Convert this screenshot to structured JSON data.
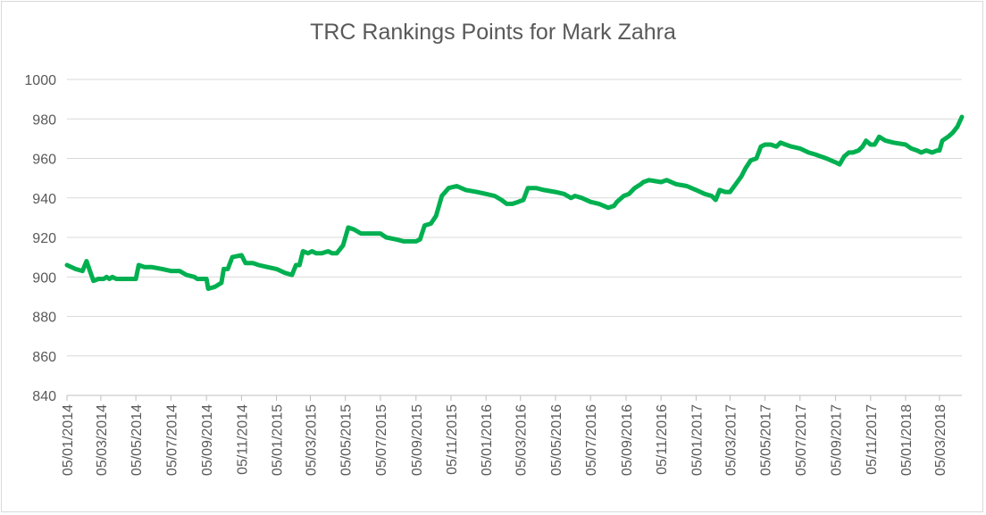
{
  "chart_data": {
    "type": "line",
    "title": "TRC Rankings Points for Mark Zahra",
    "xlabel": "",
    "ylabel": "",
    "ylim": [
      840,
      1000
    ],
    "yticks": [
      840,
      860,
      880,
      900,
      920,
      940,
      960,
      980,
      1000
    ],
    "xlim": [
      "2014-01-05",
      "2018-04-13"
    ],
    "xticks": [
      {
        "date": "2014-01-05",
        "label": "05/01/2014"
      },
      {
        "date": "2014-03-05",
        "label": "05/03/2014"
      },
      {
        "date": "2014-05-05",
        "label": "05/05/2014"
      },
      {
        "date": "2014-07-05",
        "label": "05/07/2014"
      },
      {
        "date": "2014-09-05",
        "label": "05/09/2014"
      },
      {
        "date": "2014-11-05",
        "label": "05/11/2014"
      },
      {
        "date": "2015-01-05",
        "label": "05/01/2015"
      },
      {
        "date": "2015-03-05",
        "label": "05/03/2015"
      },
      {
        "date": "2015-05-05",
        "label": "05/05/2015"
      },
      {
        "date": "2015-07-05",
        "label": "05/07/2015"
      },
      {
        "date": "2015-09-05",
        "label": "05/09/2015"
      },
      {
        "date": "2015-11-05",
        "label": "05/11/2015"
      },
      {
        "date": "2016-01-05",
        "label": "05/01/2016"
      },
      {
        "date": "2016-03-05",
        "label": "05/03/2016"
      },
      {
        "date": "2016-05-05",
        "label": "05/05/2016"
      },
      {
        "date": "2016-07-05",
        "label": "05/07/2016"
      },
      {
        "date": "2016-09-05",
        "label": "05/09/2016"
      },
      {
        "date": "2016-11-05",
        "label": "05/11/2016"
      },
      {
        "date": "2017-01-05",
        "label": "05/01/2017"
      },
      {
        "date": "2017-03-05",
        "label": "05/03/2017"
      },
      {
        "date": "2017-05-05",
        "label": "05/05/2017"
      },
      {
        "date": "2017-07-05",
        "label": "05/07/2017"
      },
      {
        "date": "2017-09-05",
        "label": "05/09/2017"
      },
      {
        "date": "2017-11-05",
        "label": "05/11/2017"
      },
      {
        "date": "2018-01-05",
        "label": "05/01/2018"
      },
      {
        "date": "2018-03-05",
        "label": "05/03/2018"
      }
    ],
    "grid": true,
    "line_color": "#00b050",
    "grid_color": "#d9d9d9",
    "series": [
      {
        "points": [
          [
            "2014-01-05",
            906
          ],
          [
            "2014-01-20",
            904
          ],
          [
            "2014-02-01",
            903
          ],
          [
            "2014-02-08",
            908
          ],
          [
            "2014-02-14",
            903
          ],
          [
            "2014-02-20",
            898
          ],
          [
            "2014-03-01",
            899
          ],
          [
            "2014-03-10",
            899
          ],
          [
            "2014-03-15",
            900
          ],
          [
            "2014-03-20",
            899
          ],
          [
            "2014-03-25",
            900
          ],
          [
            "2014-04-01",
            899
          ],
          [
            "2014-04-15",
            899
          ],
          [
            "2014-05-05",
            899
          ],
          [
            "2014-05-10",
            906
          ],
          [
            "2014-05-20",
            905
          ],
          [
            "2014-06-01",
            905
          ],
          [
            "2014-06-20",
            904
          ],
          [
            "2014-07-05",
            903
          ],
          [
            "2014-07-20",
            903
          ],
          [
            "2014-08-01",
            901
          ],
          [
            "2014-08-15",
            900
          ],
          [
            "2014-08-20",
            899
          ],
          [
            "2014-09-05",
            899
          ],
          [
            "2014-09-08",
            894
          ],
          [
            "2014-09-20",
            895
          ],
          [
            "2014-10-01",
            897
          ],
          [
            "2014-10-05",
            904
          ],
          [
            "2014-10-12",
            904
          ],
          [
            "2014-10-20",
            910
          ],
          [
            "2014-11-05",
            911
          ],
          [
            "2014-11-12",
            907
          ],
          [
            "2014-11-25",
            907
          ],
          [
            "2014-12-05",
            906
          ],
          [
            "2014-12-20",
            905
          ],
          [
            "2015-01-05",
            904
          ],
          [
            "2015-01-20",
            902
          ],
          [
            "2015-02-01",
            901
          ],
          [
            "2015-02-08",
            906
          ],
          [
            "2015-02-14",
            906
          ],
          [
            "2015-02-20",
            913
          ],
          [
            "2015-03-01",
            912
          ],
          [
            "2015-03-08",
            913
          ],
          [
            "2015-03-15",
            912
          ],
          [
            "2015-03-25",
            912
          ],
          [
            "2015-04-05",
            913
          ],
          [
            "2015-04-12",
            912
          ],
          [
            "2015-04-20",
            912
          ],
          [
            "2015-05-01",
            916
          ],
          [
            "2015-05-10",
            925
          ],
          [
            "2015-05-20",
            924
          ],
          [
            "2015-06-01",
            922
          ],
          [
            "2015-06-20",
            922
          ],
          [
            "2015-07-05",
            922
          ],
          [
            "2015-07-15",
            920
          ],
          [
            "2015-08-01",
            919
          ],
          [
            "2015-08-15",
            918
          ],
          [
            "2015-09-05",
            918
          ],
          [
            "2015-09-12",
            919
          ],
          [
            "2015-09-20",
            926
          ],
          [
            "2015-10-01",
            927
          ],
          [
            "2015-10-10",
            931
          ],
          [
            "2015-10-20",
            941
          ],
          [
            "2015-11-01",
            945
          ],
          [
            "2015-11-15",
            946
          ],
          [
            "2015-12-01",
            944
          ],
          [
            "2015-12-20",
            943
          ],
          [
            "2016-01-05",
            942
          ],
          [
            "2016-01-20",
            941
          ],
          [
            "2016-02-01",
            939
          ],
          [
            "2016-02-10",
            937
          ],
          [
            "2016-02-20",
            937
          ],
          [
            "2016-03-01",
            938
          ],
          [
            "2016-03-10",
            939
          ],
          [
            "2016-03-18",
            945
          ],
          [
            "2016-04-01",
            945
          ],
          [
            "2016-04-15",
            944
          ],
          [
            "2016-05-05",
            943
          ],
          [
            "2016-05-20",
            942
          ],
          [
            "2016-06-01",
            940
          ],
          [
            "2016-06-08",
            941
          ],
          [
            "2016-06-20",
            940
          ],
          [
            "2016-07-05",
            938
          ],
          [
            "2016-07-20",
            937
          ],
          [
            "2016-08-05",
            935
          ],
          [
            "2016-08-15",
            936
          ],
          [
            "2016-08-20",
            938
          ],
          [
            "2016-09-01",
            941
          ],
          [
            "2016-09-10",
            942
          ],
          [
            "2016-09-20",
            945
          ],
          [
            "2016-10-01",
            947
          ],
          [
            "2016-10-05",
            948
          ],
          [
            "2016-10-15",
            949
          ],
          [
            "2016-11-05",
            948
          ],
          [
            "2016-11-15",
            949
          ],
          [
            "2016-12-01",
            947
          ],
          [
            "2016-12-20",
            946
          ],
          [
            "2017-01-05",
            944
          ],
          [
            "2017-01-20",
            942
          ],
          [
            "2017-02-01",
            941
          ],
          [
            "2017-02-08",
            939
          ],
          [
            "2017-02-15",
            944
          ],
          [
            "2017-02-25",
            943
          ],
          [
            "2017-03-05",
            943
          ],
          [
            "2017-03-15",
            947
          ],
          [
            "2017-03-25",
            951
          ],
          [
            "2017-04-01",
            955
          ],
          [
            "2017-04-10",
            959
          ],
          [
            "2017-04-20",
            960
          ],
          [
            "2017-04-28",
            966
          ],
          [
            "2017-05-05",
            967
          ],
          [
            "2017-05-15",
            967
          ],
          [
            "2017-05-25",
            966
          ],
          [
            "2017-06-01",
            968
          ],
          [
            "2017-06-10",
            967
          ],
          [
            "2017-06-20",
            966
          ],
          [
            "2017-07-05",
            965
          ],
          [
            "2017-07-20",
            963
          ],
          [
            "2017-08-01",
            962
          ],
          [
            "2017-08-10",
            961
          ],
          [
            "2017-08-20",
            960
          ],
          [
            "2017-09-05",
            958
          ],
          [
            "2017-09-12",
            957
          ],
          [
            "2017-09-20",
            961
          ],
          [
            "2017-09-28",
            963
          ],
          [
            "2017-10-05",
            963
          ],
          [
            "2017-10-15",
            964
          ],
          [
            "2017-10-22",
            966
          ],
          [
            "2017-10-28",
            969
          ],
          [
            "2017-11-05",
            967
          ],
          [
            "2017-11-12",
            967
          ],
          [
            "2017-11-20",
            971
          ],
          [
            "2017-12-01",
            969
          ],
          [
            "2017-12-15",
            968
          ],
          [
            "2018-01-05",
            967
          ],
          [
            "2018-01-15",
            965
          ],
          [
            "2018-01-25",
            964
          ],
          [
            "2018-02-01",
            963
          ],
          [
            "2018-02-10",
            964
          ],
          [
            "2018-02-20",
            963
          ],
          [
            "2018-03-01",
            964
          ],
          [
            "2018-03-05",
            964
          ],
          [
            "2018-03-10",
            969
          ],
          [
            "2018-03-20",
            971
          ],
          [
            "2018-03-28",
            973
          ],
          [
            "2018-04-05",
            976
          ],
          [
            "2018-04-13",
            981
          ]
        ]
      }
    ]
  }
}
